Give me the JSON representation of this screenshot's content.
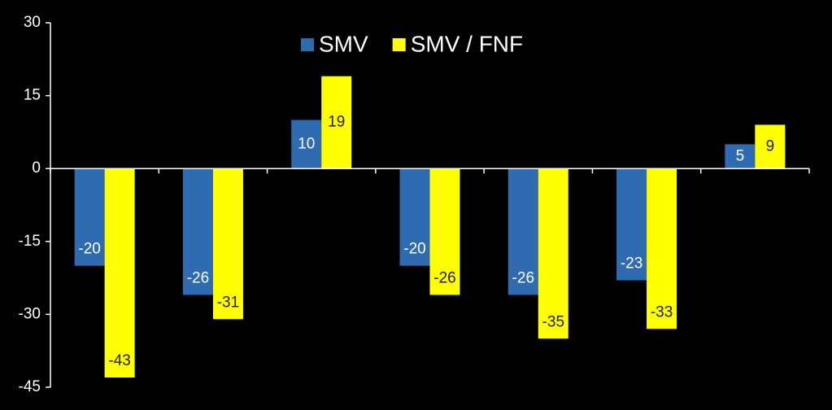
{
  "chart_data": {
    "type": "bar",
    "categories": [
      null,
      null,
      null,
      null,
      null,
      null,
      null
    ],
    "series": [
      {
        "name": "SMV",
        "color": "#2e6bb0",
        "values": [
          -20,
          -26,
          10,
          -20,
          -26,
          -23,
          5
        ]
      },
      {
        "name": "SMV / FNF",
        "color": "#ffff00",
        "values": [
          -43,
          -31,
          19,
          -26,
          -35,
          -33,
          9
        ]
      }
    ],
    "ylim": [
      -45,
      30
    ],
    "yticks": [
      -45,
      -30,
      -15,
      0,
      15,
      30
    ],
    "grid": false,
    "legend": "top"
  }
}
